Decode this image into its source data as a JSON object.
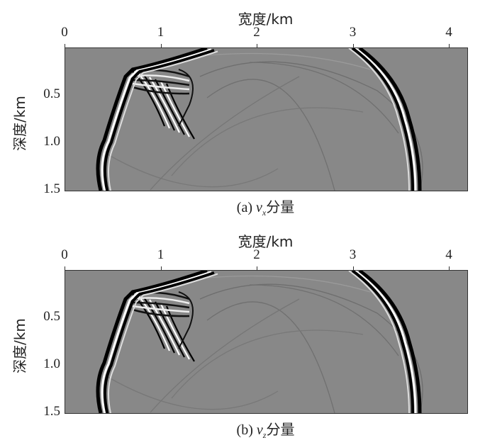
{
  "figure": {
    "panels": [
      {
        "xlabel": "宽度/km",
        "ylabel": "深度/km",
        "xticks": [
          "0",
          "1",
          "2",
          "3",
          "4"
        ],
        "yticks": [
          "0.5",
          "1.0",
          "1.5"
        ],
        "caption_prefix": "(a)",
        "caption_var": "v",
        "caption_sub": "x",
        "caption_suffix": "分量"
      },
      {
        "xlabel": "宽度/km",
        "ylabel": "深度/km",
        "xticks": [
          "0",
          "1",
          "2",
          "3",
          "4"
        ],
        "yticks": [
          "0.5",
          "1.0",
          "1.5"
        ],
        "caption_prefix": "(b)",
        "caption_var": "v",
        "caption_sub": "z",
        "caption_suffix": "分量"
      }
    ],
    "background_color": "#888888",
    "x_range_km": [
      0,
      4.2
    ],
    "depth_range_km": [
      0,
      1.5
    ]
  }
}
